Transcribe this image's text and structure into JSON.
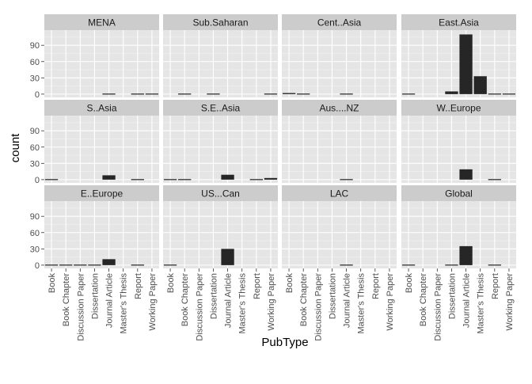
{
  "chart_data": {
    "type": "bar",
    "xlabel": "PubType",
    "ylabel": "count",
    "categories": [
      "Book",
      "Book Chapter",
      "Discussion Paper",
      "Dissertation",
      "Journal Article",
      "Master's Thesis",
      "Report",
      "Working Paper"
    ],
    "yticks": [
      0,
      30,
      60,
      90
    ],
    "ylim": [
      -6,
      118
    ],
    "grid": true,
    "layout": "facet_wrap 4 columns x 3 rows",
    "colors": {
      "panel": "#e5e5e5",
      "strip": "#cccccc",
      "grid_major": "#ffffff",
      "grid_minor": "#f2f2f2",
      "bar": "#262626"
    },
    "panels": [
      {
        "name": "MENA",
        "values": [
          0,
          0,
          0,
          0,
          1,
          0,
          1,
          1
        ]
      },
      {
        "name": "Sub.Saharan",
        "values": [
          0,
          1,
          0,
          1,
          0,
          0,
          0,
          1
        ]
      },
      {
        "name": "Cent..Asia",
        "values": [
          2,
          1,
          0,
          0,
          1,
          0,
          0,
          0
        ]
      },
      {
        "name": "East.Asia",
        "values": [
          1,
          0,
          0,
          5,
          110,
          33,
          1,
          1
        ]
      },
      {
        "name": "S..Asia",
        "values": [
          1,
          0,
          0,
          0,
          8,
          0,
          1,
          0
        ]
      },
      {
        "name": "S.E..Asia",
        "values": [
          1,
          1,
          0,
          0,
          9,
          0,
          1,
          3
        ]
      },
      {
        "name": "Aus....NZ",
        "values": [
          0,
          0,
          0,
          0,
          1,
          0,
          0,
          0
        ]
      },
      {
        "name": "W..Europe",
        "values": [
          0,
          0,
          0,
          0,
          19,
          0,
          1,
          0
        ]
      },
      {
        "name": "E..Europe",
        "values": [
          1,
          1,
          1,
          1,
          11,
          0,
          1,
          0
        ]
      },
      {
        "name": "US...Can",
        "values": [
          1,
          0,
          0,
          0,
          30,
          0,
          0,
          0
        ]
      },
      {
        "name": "LAC",
        "values": [
          0,
          0,
          0,
          0,
          1,
          0,
          0,
          0
        ]
      },
      {
        "name": "Global",
        "values": [
          1,
          0,
          0,
          1,
          35,
          0,
          1,
          0
        ]
      }
    ]
  }
}
